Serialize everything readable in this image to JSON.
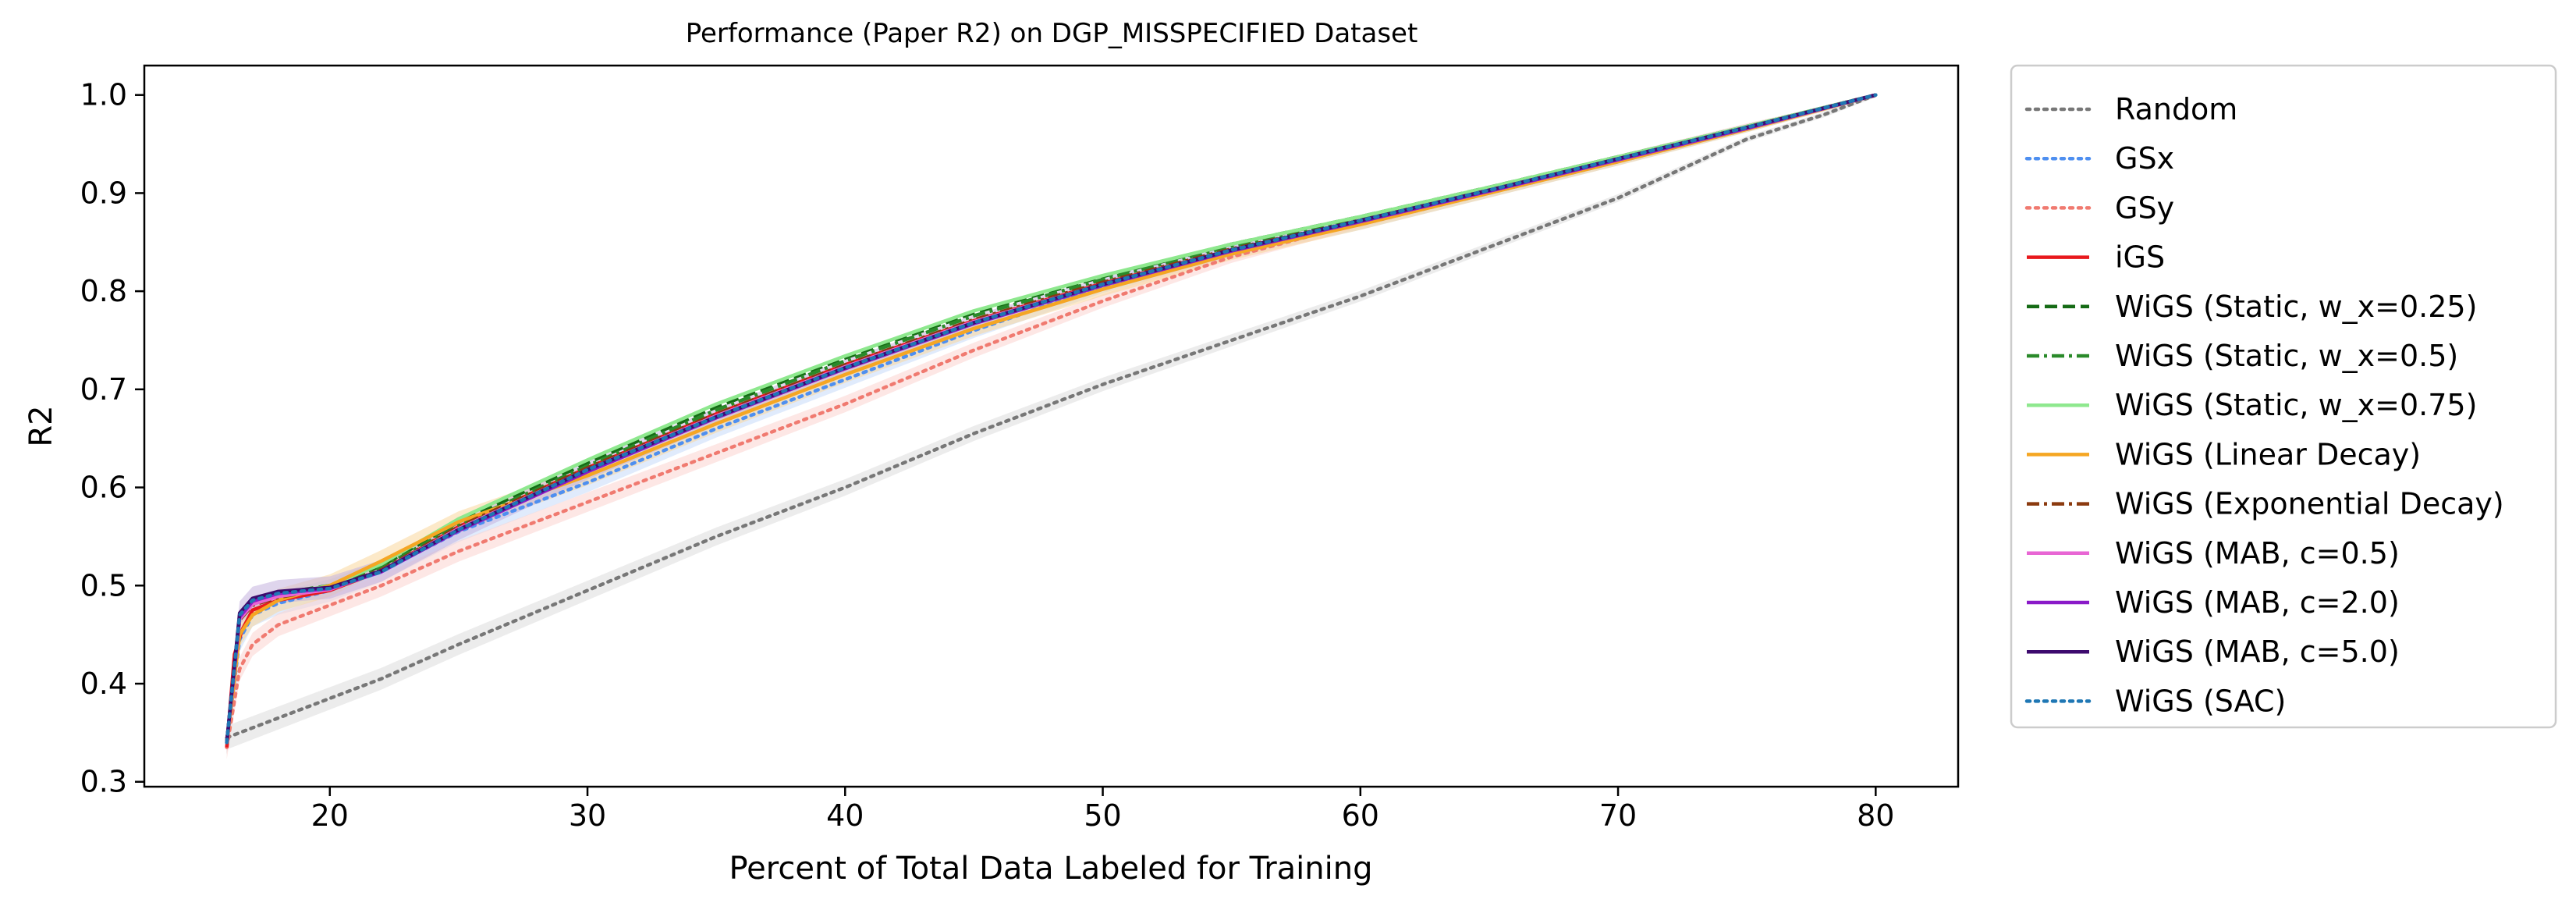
{
  "chart_data": {
    "type": "line",
    "title": "Performance (Paper R2) on DGP_MISSPECIFIED Dataset",
    "xlabel": "Percent of Total Data Labeled for Training",
    "ylabel": "R2",
    "xlim": [
      12.8,
      83.2
    ],
    "ylim": [
      0.295,
      1.03
    ],
    "xticks": [
      20,
      30,
      40,
      50,
      60,
      70,
      80
    ],
    "yticks": [
      0.3,
      0.4,
      0.5,
      0.6,
      0.7,
      0.8,
      0.9,
      1.0
    ],
    "grid": false,
    "legend_position": "outside-right",
    "series": [
      {
        "name": "Random",
        "color": "#777777",
        "dash": "dotted",
        "band": "#dddddd",
        "x": [
          16,
          17,
          18,
          20,
          22,
          25,
          30,
          35,
          40,
          45,
          50,
          55,
          60,
          65,
          70,
          75,
          78,
          80
        ],
        "y": [
          0.345,
          0.355,
          0.365,
          0.385,
          0.405,
          0.44,
          0.495,
          0.55,
          0.6,
          0.655,
          0.705,
          0.75,
          0.795,
          0.845,
          0.895,
          0.955,
          0.98,
          1.0
        ]
      },
      {
        "name": "GSx",
        "color": "#4e8ff0",
        "dash": "dotted",
        "band": "#c7dafa",
        "x": [
          16,
          16.5,
          17,
          18,
          20,
          22,
          25,
          30,
          35,
          40,
          45,
          50,
          55,
          60,
          65,
          70,
          75,
          80
        ],
        "y": [
          0.34,
          0.445,
          0.47,
          0.482,
          0.495,
          0.515,
          0.555,
          0.605,
          0.66,
          0.71,
          0.76,
          0.805,
          0.84,
          0.868,
          0.9,
          0.932,
          0.965,
          1.0
        ]
      },
      {
        "name": "GSy",
        "color": "#f07a70",
        "dash": "dotted",
        "band": "#fbd3cf",
        "x": [
          16,
          16.5,
          17,
          18,
          20,
          22,
          25,
          30,
          35,
          40,
          45,
          50,
          55,
          60,
          65,
          70,
          75,
          80
        ],
        "y": [
          0.335,
          0.415,
          0.44,
          0.46,
          0.48,
          0.5,
          0.535,
          0.585,
          0.635,
          0.685,
          0.74,
          0.79,
          0.835,
          0.87,
          0.903,
          0.935,
          0.968,
          1.0
        ]
      },
      {
        "name": "iGS",
        "color": "#e8191d",
        "dash": "solid",
        "x": [
          16,
          16.3,
          16.6,
          17,
          18,
          20,
          22,
          25,
          30,
          35,
          40,
          45,
          50,
          55,
          60,
          65,
          70,
          75,
          77,
          80
        ],
        "y": [
          0.335,
          0.43,
          0.455,
          0.475,
          0.485,
          0.495,
          0.515,
          0.56,
          0.62,
          0.675,
          0.725,
          0.77,
          0.808,
          0.842,
          0.872,
          0.904,
          0.936,
          0.966,
          0.98,
          1.0
        ]
      },
      {
        "name": "WiGS (Static, w_x=0.25)",
        "color": "#156b15",
        "dash": "dashed",
        "x": [
          16,
          16.5,
          17,
          18,
          20,
          22,
          25,
          30,
          35,
          40,
          45,
          50,
          55,
          60,
          65,
          70,
          75,
          80
        ],
        "y": [
          0.34,
          0.47,
          0.485,
          0.492,
          0.5,
          0.52,
          0.565,
          0.625,
          0.682,
          0.732,
          0.778,
          0.815,
          0.848,
          0.876,
          0.906,
          0.937,
          0.968,
          1.0
        ]
      },
      {
        "name": "WiGS (Static, w_x=0.5)",
        "color": "#2a8a2a",
        "dash": "dashdot",
        "x": [
          16,
          16.5,
          17,
          18,
          20,
          22,
          25,
          30,
          35,
          40,
          45,
          50,
          55,
          60,
          65,
          70,
          75,
          80
        ],
        "y": [
          0.34,
          0.468,
          0.483,
          0.49,
          0.498,
          0.518,
          0.562,
          0.622,
          0.679,
          0.729,
          0.775,
          0.812,
          0.846,
          0.874,
          0.905,
          0.936,
          0.967,
          1.0
        ]
      },
      {
        "name": "WiGS (Static, w_x=0.75)",
        "color": "#8ee88e",
        "dash": "solid",
        "x": [
          16,
          16.5,
          17,
          18,
          20,
          22,
          25,
          30,
          35,
          40,
          45,
          50,
          55,
          60,
          65,
          70,
          75,
          80
        ],
        "y": [
          0.34,
          0.466,
          0.482,
          0.49,
          0.5,
          0.522,
          0.568,
          0.628,
          0.685,
          0.734,
          0.78,
          0.816,
          0.848,
          0.876,
          0.906,
          0.937,
          0.968,
          1.0
        ]
      },
      {
        "name": "WiGS (Linear Decay)",
        "color": "#f5a623",
        "dash": "solid",
        "band": "#f9d79c",
        "x": [
          16,
          16.5,
          17,
          18,
          20,
          22,
          25,
          30,
          35,
          40,
          45,
          50,
          55,
          60,
          65,
          70,
          75,
          80
        ],
        "y": [
          0.34,
          0.45,
          0.47,
          0.485,
          0.5,
          0.525,
          0.565,
          0.612,
          0.665,
          0.715,
          0.762,
          0.802,
          0.838,
          0.868,
          0.9,
          0.932,
          0.965,
          1.0
        ]
      },
      {
        "name": "WiGS (Exponential Decay)",
        "color": "#8b3a0f",
        "dash": "dashdot",
        "x": [
          16,
          16.5,
          17,
          18,
          20,
          22,
          25,
          30,
          35,
          40,
          45,
          50,
          55,
          60,
          65,
          70,
          75,
          80
        ],
        "y": [
          0.34,
          0.465,
          0.48,
          0.488,
          0.497,
          0.516,
          0.56,
          0.62,
          0.675,
          0.725,
          0.771,
          0.809,
          0.843,
          0.872,
          0.903,
          0.935,
          0.967,
          1.0
        ]
      },
      {
        "name": "WiGS (MAB, c=0.5)",
        "color": "#e866d4",
        "dash": "solid",
        "x": [
          16,
          16.5,
          17,
          18,
          20,
          22,
          25,
          30,
          35,
          40,
          45,
          50,
          55,
          60,
          65,
          70,
          75,
          80
        ],
        "y": [
          0.34,
          0.466,
          0.481,
          0.489,
          0.496,
          0.515,
          0.558,
          0.618,
          0.673,
          0.723,
          0.769,
          0.807,
          0.842,
          0.871,
          0.902,
          0.934,
          0.966,
          1.0
        ]
      },
      {
        "name": "WiGS (MAB, c=2.0)",
        "color": "#8a1ac8",
        "dash": "solid",
        "x": [
          16,
          16.5,
          17,
          18,
          20,
          22,
          25,
          30,
          35,
          40,
          45,
          50,
          55,
          60,
          65,
          70,
          75,
          80
        ],
        "y": [
          0.34,
          0.468,
          0.484,
          0.492,
          0.497,
          0.514,
          0.556,
          0.616,
          0.671,
          0.721,
          0.767,
          0.806,
          0.841,
          0.871,
          0.902,
          0.934,
          0.966,
          1.0
        ]
      },
      {
        "name": "WiGS (MAB, c=5.0)",
        "color": "#3d0a6e",
        "dash": "solid",
        "band": "#c4b3de",
        "x": [
          16,
          16.5,
          17,
          18,
          20,
          22,
          25,
          30,
          35,
          40,
          45,
          50,
          55,
          60,
          65,
          70,
          75,
          80
        ],
        "y": [
          0.34,
          0.472,
          0.487,
          0.494,
          0.498,
          0.515,
          0.557,
          0.618,
          0.672,
          0.722,
          0.768,
          0.807,
          0.842,
          0.872,
          0.903,
          0.935,
          0.967,
          1.0
        ]
      },
      {
        "name": "WiGS (SAC)",
        "color": "#1f77b4",
        "dash": "dotted",
        "x": [
          16,
          16.5,
          17,
          18,
          20,
          22,
          25,
          30,
          35,
          40,
          45,
          50,
          55,
          60,
          65,
          70,
          75,
          80
        ],
        "y": [
          0.34,
          0.47,
          0.485,
          0.492,
          0.497,
          0.514,
          0.557,
          0.618,
          0.672,
          0.722,
          0.768,
          0.807,
          0.842,
          0.872,
          0.903,
          0.935,
          0.967,
          1.0
        ]
      }
    ]
  }
}
